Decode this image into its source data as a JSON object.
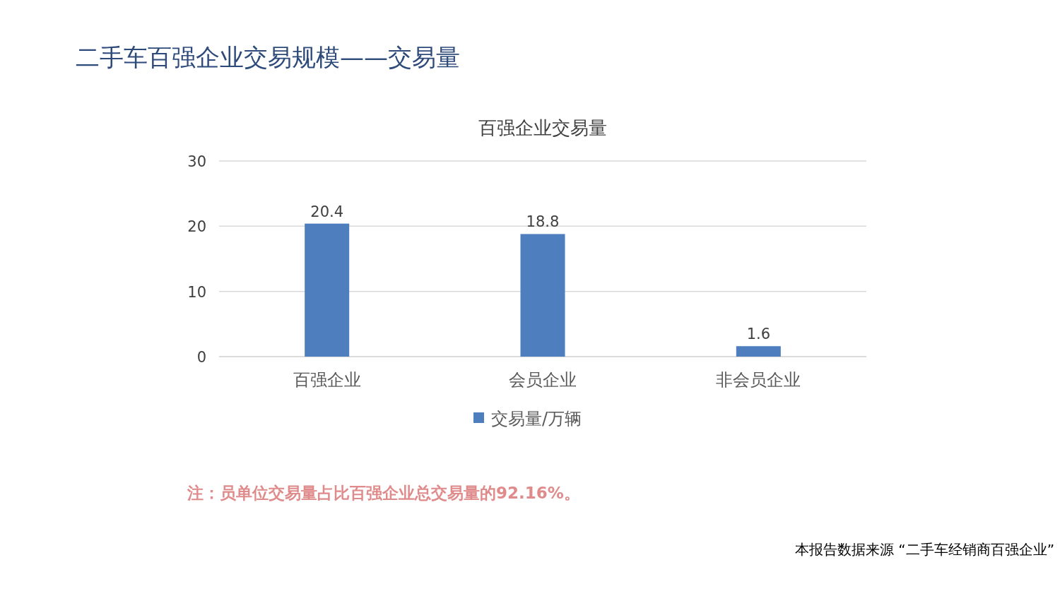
{
  "chart_data": {
    "type": "bar",
    "title": "二手车百强企业交易规模——交易量",
    "subtitle": "百强企业交易量",
    "categories": [
      "百强企业",
      "会员企业",
      "非会员企业"
    ],
    "series": [
      {
        "name": "交易量/万辆",
        "color": "#4e7ebd",
        "values": [
          20.4,
          18.8,
          1.6
        ]
      }
    ],
    "ylim": [
      0,
      30
    ],
    "yticks": [
      0,
      10,
      20,
      30
    ],
    "grid": "y",
    "legend": "bottom",
    "data_labels": true,
    "annotations": [
      "注：员单位交易量占比百强企业总交易量的92.16%。",
      "本报告数据来源 “二手车经销商百强企业”"
    ]
  }
}
